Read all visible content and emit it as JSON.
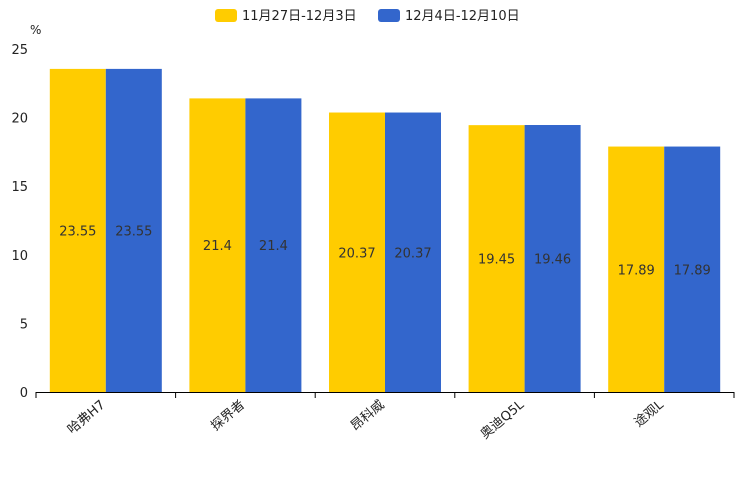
{
  "chart_data": {
    "type": "bar",
    "title": "",
    "ylabel": "%",
    "xlabel": "",
    "ylim": [
      0,
      25
    ],
    "yticks": [
      0,
      5,
      10,
      15,
      20,
      25
    ],
    "categories": [
      "哈弗H7",
      "探界者",
      "昂科威",
      "奥迪Q5L",
      "途观L"
    ],
    "series": [
      {
        "name": "11月27日-12月3日",
        "color": "#ffcc00",
        "values": [
          23.55,
          21.4,
          20.37,
          19.45,
          17.89
        ]
      },
      {
        "name": "12月4日-12月10日",
        "color": "#3366cc",
        "values": [
          23.55,
          21.4,
          20.37,
          19.46,
          17.89
        ]
      }
    ],
    "legend_position": "top-center",
    "grid": false
  }
}
